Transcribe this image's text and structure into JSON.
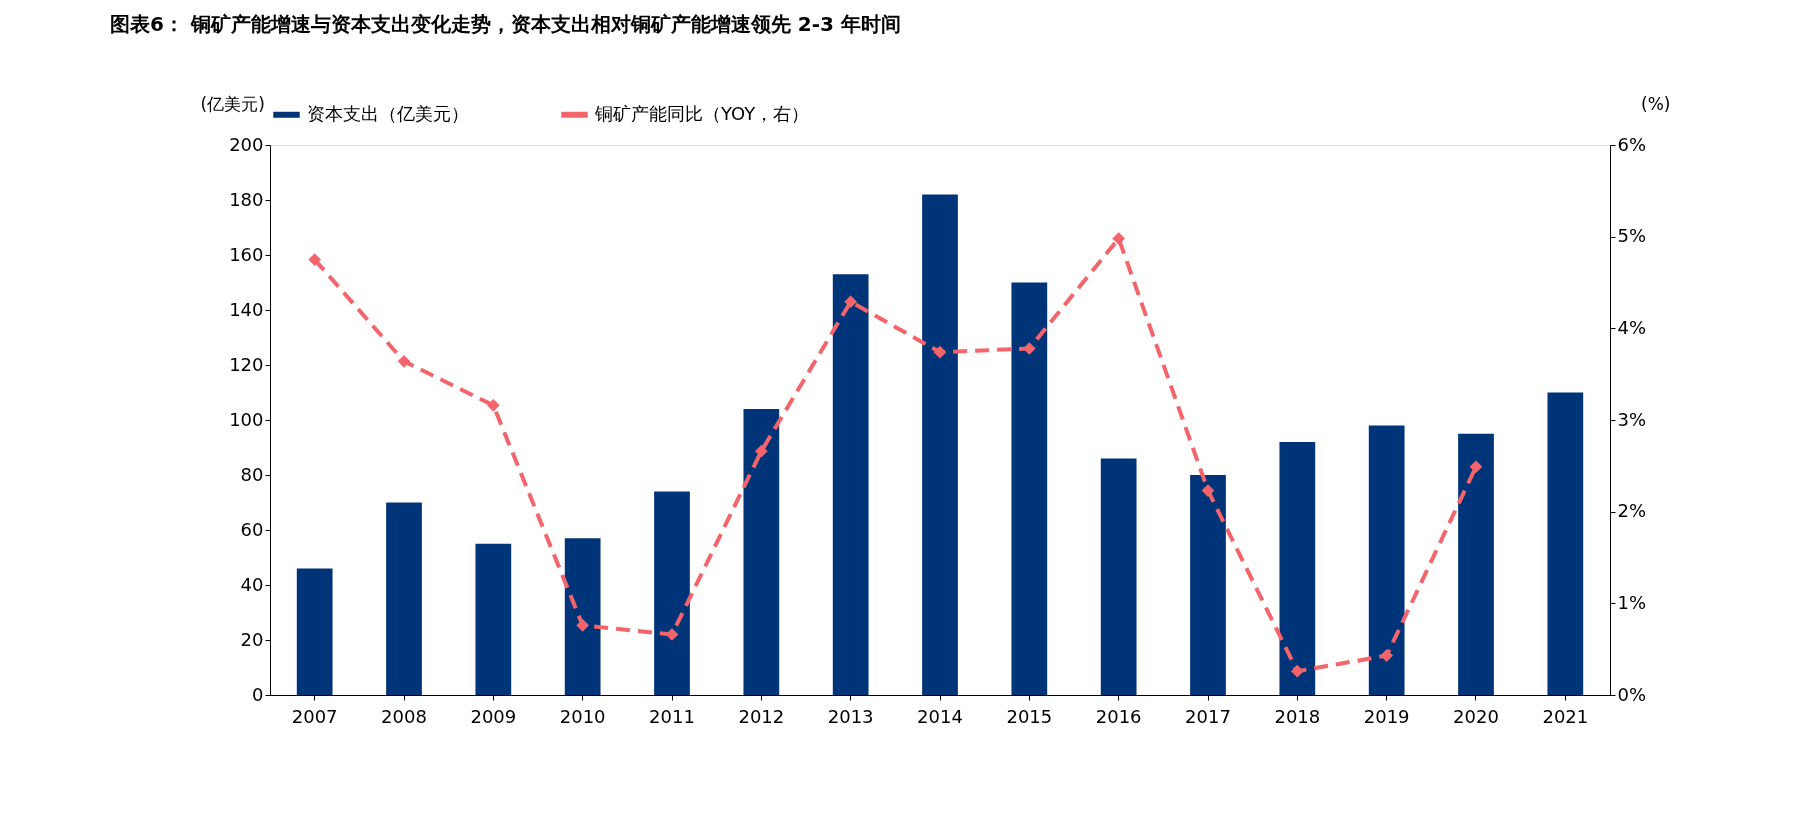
{
  "chart_data": {
    "type": "bar",
    "title": "图表6：  铜矿产能增速与资本支出变化走势，资本支出相对铜矿产能增速领先 2-3 年时间",
    "ylabel": "(亿美元)",
    "y2label": "(%)",
    "categories": [
      "2007",
      "2008",
      "2009",
      "2010",
      "2011",
      "2012",
      "2013",
      "2014",
      "2015",
      "2016",
      "2017",
      "2018",
      "2019",
      "2020",
      "2021"
    ],
    "series": [
      {
        "name": "资本支出（亿美元）",
        "color": "#003478",
        "values": [
          46,
          70,
          55,
          57,
          74,
          104,
          153,
          182,
          150,
          86,
          80,
          92,
          98,
          95,
          110
        ]
      },
      {
        "name": "铜矿产能同比（YOY，右）",
        "type": "line",
        "axis": "y2",
        "color": "#f4646b",
        "marker": "diamond",
        "line_style": "dashed",
        "values": [
          4.75,
          3.64,
          3.16,
          0.76,
          0.66,
          2.66,
          4.29,
          3.74,
          3.78,
          4.98,
          2.23,
          0.26,
          0.43,
          2.49,
          null
        ]
      }
    ],
    "ylim": [
      0,
      200
    ],
    "yticks": [
      0,
      20,
      40,
      60,
      80,
      100,
      120,
      140,
      160,
      180,
      200
    ],
    "y2lim": [
      0,
      6
    ],
    "y2ticks": [
      {
        "value": 0,
        "label": "0%"
      },
      {
        "value": 1,
        "label": "1%"
      },
      {
        "value": 2,
        "label": "2%"
      },
      {
        "value": 3,
        "label": "3%"
      },
      {
        "value": 4,
        "label": "4%"
      },
      {
        "value": 5,
        "label": "5%"
      },
      {
        "value": 6,
        "label": "6%"
      }
    ],
    "grid": false,
    "legend": "top"
  }
}
